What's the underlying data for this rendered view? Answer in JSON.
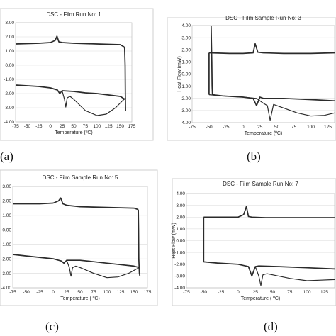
{
  "chart_data": [
    {
      "type": "line",
      "title": "DSC - Film Run No: 1",
      "xlabel": "Temperature (ºC)",
      "ylabel": "",
      "caption": "(a)",
      "xlim": [
        -75,
        175
      ],
      "ylim": [
        -4.0,
        3.0
      ],
      "xticks": [
        "-75",
        "-50",
        "-25",
        "0",
        "25",
        "50",
        "75",
        "100",
        "125",
        "150",
        "175"
      ],
      "yticks": [
        "3.00",
        "2.00",
        "1.00",
        "0.00",
        "-1.00",
        "-2.00",
        "-3.00",
        "-4.00"
      ],
      "series": [
        {
          "x": [
            -75,
            -25,
            0,
            10,
            14,
            18,
            25,
            50,
            100,
            150,
            158,
            159.5
          ],
          "y": [
            1.5,
            1.55,
            1.6,
            1.75,
            2.05,
            1.65,
            1.6,
            1.55,
            1.5,
            1.45,
            1.3,
            1.2
          ]
        },
        {
          "x": [
            159.5,
            160.5,
            161,
            161.5
          ],
          "y": [
            1.2,
            0.0,
            -2.0,
            -3.2
          ]
        },
        {
          "x": [
            -75,
            -50,
            -25,
            0,
            15,
            20,
            25,
            50,
            75,
            100,
            125,
            150,
            160
          ],
          "y": [
            -1.4,
            -1.45,
            -1.5,
            -1.6,
            -1.75,
            -2.0,
            -1.8,
            -1.85,
            -1.95,
            -2.0,
            -2.1,
            -2.2,
            -2.4
          ]
        },
        {
          "x": [
            25,
            30,
            33,
            36,
            42,
            50,
            75,
            100,
            120,
            140,
            155,
            162
          ],
          "y": [
            -1.8,
            -2.4,
            -2.95,
            -2.3,
            -2.2,
            -2.4,
            -3.2,
            -3.55,
            -3.45,
            -3.0,
            -2.5,
            -2.3
          ]
        }
      ]
    },
    {
      "type": "line",
      "title": "DSC - Film Sample Run No: 3",
      "xlabel": "Temperature (ºC)",
      "ylabel": "Heat Flow (mW)",
      "caption": "(b)",
      "xlim": [
        -75,
        135
      ],
      "ylim": [
        -4.0,
        4.0
      ],
      "xticks": [
        "-75",
        "-50",
        "-25",
        "0",
        "25",
        "50",
        "75",
        "100",
        "125"
      ],
      "yticks": [
        "4.00",
        "3.00",
        "2.00",
        "1.00",
        "0.00",
        "-1.00",
        "-2.00",
        "-3.00",
        "-4.00"
      ],
      "series": [
        {
          "x": [
            -47,
            -46,
            -45.5,
            -45
          ],
          "y": [
            4.0,
            1.0,
            -1.0,
            -1.7
          ]
        },
        {
          "x": [
            -45,
            -30,
            0,
            15,
            20,
            25,
            30,
            60,
            100,
            135
          ],
          "y": [
            -1.7,
            -1.8,
            -1.9,
            -2.0,
            -2.6,
            -1.9,
            -2.0,
            -2.0,
            -2.1,
            -2.2
          ]
        },
        {
          "x": [
            -50,
            -20,
            0,
            15,
            18,
            22,
            30,
            60,
            100,
            135
          ],
          "y": [
            1.75,
            1.7,
            1.7,
            1.75,
            2.5,
            1.8,
            1.75,
            1.7,
            1.7,
            1.75
          ]
        },
        {
          "x": [
            -50,
            -50
          ],
          "y": [
            1.75,
            -1.7
          ]
        },
        {
          "x": [
            -50,
            -30,
            0,
            20,
            30,
            36,
            40,
            45,
            60,
            80,
            100,
            120,
            135
          ],
          "y": [
            -1.7,
            -1.8,
            -1.9,
            -2.0,
            -2.4,
            -2.6,
            -3.8,
            -2.5,
            -2.8,
            -3.2,
            -3.45,
            -3.4,
            -3.2
          ]
        }
      ]
    },
    {
      "type": "line",
      "title": "DSC - Film Sample Run No: 5",
      "xlabel": "Temperature ( ºC)",
      "ylabel": "",
      "caption": "(c)",
      "xlim": [
        -75,
        175
      ],
      "ylim": [
        -4.0,
        3.0
      ],
      "xticks": [
        "-75",
        "-50",
        "-25",
        "0",
        "25",
        "50",
        "75",
        "100",
        "125",
        "150",
        "175"
      ],
      "yticks": [
        "3.00",
        "2.00",
        "1.00",
        "0.00",
        "-1.00",
        "-2.00",
        "-3.00",
        "-4.00"
      ],
      "series": [
        {
          "x": [
            -75,
            -25,
            0,
            10,
            14,
            18,
            25,
            50,
            100,
            150,
            158
          ],
          "y": [
            1.8,
            1.8,
            1.85,
            2.0,
            2.2,
            1.8,
            1.7,
            1.6,
            1.55,
            1.5,
            1.4
          ]
        },
        {
          "x": [
            158,
            158.5,
            159,
            160,
            161
          ],
          "y": [
            1.4,
            0.0,
            -2.0,
            -3.0,
            -3.2
          ]
        },
        {
          "x": [
            -75,
            -50,
            -25,
            0,
            15,
            20,
            25,
            50,
            75,
            100,
            125,
            150,
            160
          ],
          "y": [
            -1.7,
            -1.8,
            -1.9,
            -2.0,
            -2.15,
            -2.3,
            -2.1,
            -2.1,
            -2.2,
            -2.3,
            -2.4,
            -2.5,
            -2.6
          ]
        },
        {
          "x": [
            25,
            30,
            33,
            36,
            42,
            50,
            75,
            100,
            120,
            140,
            155,
            160
          ],
          "y": [
            -2.1,
            -2.6,
            -3.2,
            -2.6,
            -2.5,
            -2.6,
            -3.0,
            -3.3,
            -3.25,
            -3.0,
            -2.7,
            -2.6
          ]
        }
      ]
    },
    {
      "type": "line",
      "title": "DSC - Film Sample Run No: 7",
      "xlabel": "Temperature ( ºC)",
      "ylabel": "Heat Flow (mW)",
      "caption": "(d)",
      "xlim": [
        -75,
        140
      ],
      "ylim": [
        -4.0,
        4.0
      ],
      "xticks": [
        "-75",
        "-50",
        "-25",
        "0",
        "25",
        "50",
        "75",
        "100",
        "125"
      ],
      "yticks": [
        "4.00",
        "3.00",
        "2.00",
        "1.00",
        "0.00",
        "-1.00",
        "-2.00",
        "-3.00",
        "-4.00"
      ],
      "series": [
        {
          "x": [
            -50,
            -20,
            0,
            8,
            12,
            15,
            20,
            40,
            80,
            120,
            140
          ],
          "y": [
            2.0,
            2.0,
            2.0,
            2.2,
            2.9,
            2.05,
            2.0,
            1.95,
            1.95,
            1.95,
            1.95
          ]
        },
        {
          "x": [
            -50,
            -50
          ],
          "y": [
            2.0,
            -1.8
          ]
        },
        {
          "x": [
            -50,
            -30,
            0,
            15,
            20,
            25,
            30,
            60,
            100,
            140
          ],
          "y": [
            -1.8,
            -1.9,
            -2.0,
            -2.2,
            -3.0,
            -2.2,
            -2.15,
            -2.2,
            -2.3,
            -2.4
          ]
        },
        {
          "x": [
            25,
            30,
            33,
            36,
            42,
            50,
            75,
            100,
            120,
            140
          ],
          "y": [
            -2.2,
            -3.0,
            -3.8,
            -2.9,
            -2.8,
            -2.9,
            -3.2,
            -3.4,
            -3.35,
            -3.3
          ]
        }
      ]
    }
  ]
}
